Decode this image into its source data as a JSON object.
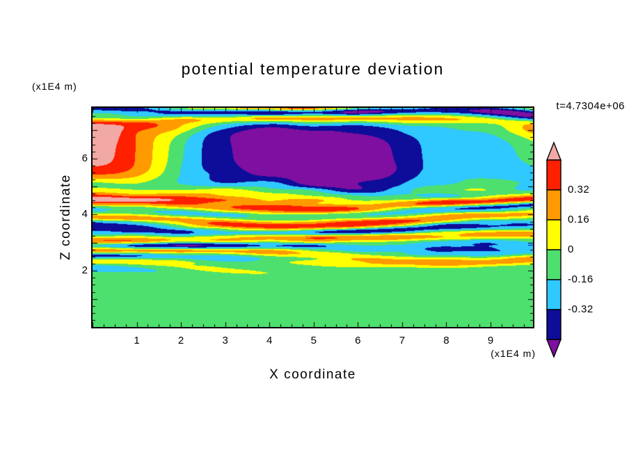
{
  "chart_data": {
    "type": "heatmap",
    "title": "potential temperature deviation",
    "xlabel": "X coordinate",
    "ylabel": "Z coordinate",
    "x_unit": "(x1E4 m)",
    "y_unit": "(x1E4 m)",
    "time_annotation": "t=4.7304e+06",
    "xlim": [
      0,
      9.96
    ],
    "ylim": [
      0,
      7.8
    ],
    "x_major_ticks": [
      1,
      2,
      3,
      4,
      5,
      6,
      7,
      8,
      9
    ],
    "y_major_ticks": [
      2,
      4,
      6
    ],
    "minor_tick_step": 0.25,
    "grid": false,
    "legend_position": "right-colorbar",
    "colorbar": {
      "tick_labels_top_to_bottom": [
        "0.32",
        "0.16",
        "0",
        "-0.16",
        "-0.32"
      ],
      "levels_low_to_high": [
        -0.48,
        -0.32,
        -0.16,
        0,
        0.16,
        0.32,
        0.48
      ],
      "colors_low_to_high": [
        "#7e0fa0",
        "#0d0d99",
        "#2fc8ff",
        "#4ee06e",
        "#ffff00",
        "#ff9a00",
        "#ff2000",
        "#f2a8a4"
      ]
    },
    "field": {
      "seed": 7,
      "description": "horizontally striated turbulent deviations; amplitude grows with height; near-zero (green) layer below z of about 2; saturated pink/purple layers near the top",
      "amplitude_bottom": 0.05,
      "amplitude_mid": 0.75,
      "amplitude_top": 0.95,
      "bottom_bias": -0.075
    },
    "frame_color": "#000000",
    "background": "#ffffff"
  }
}
